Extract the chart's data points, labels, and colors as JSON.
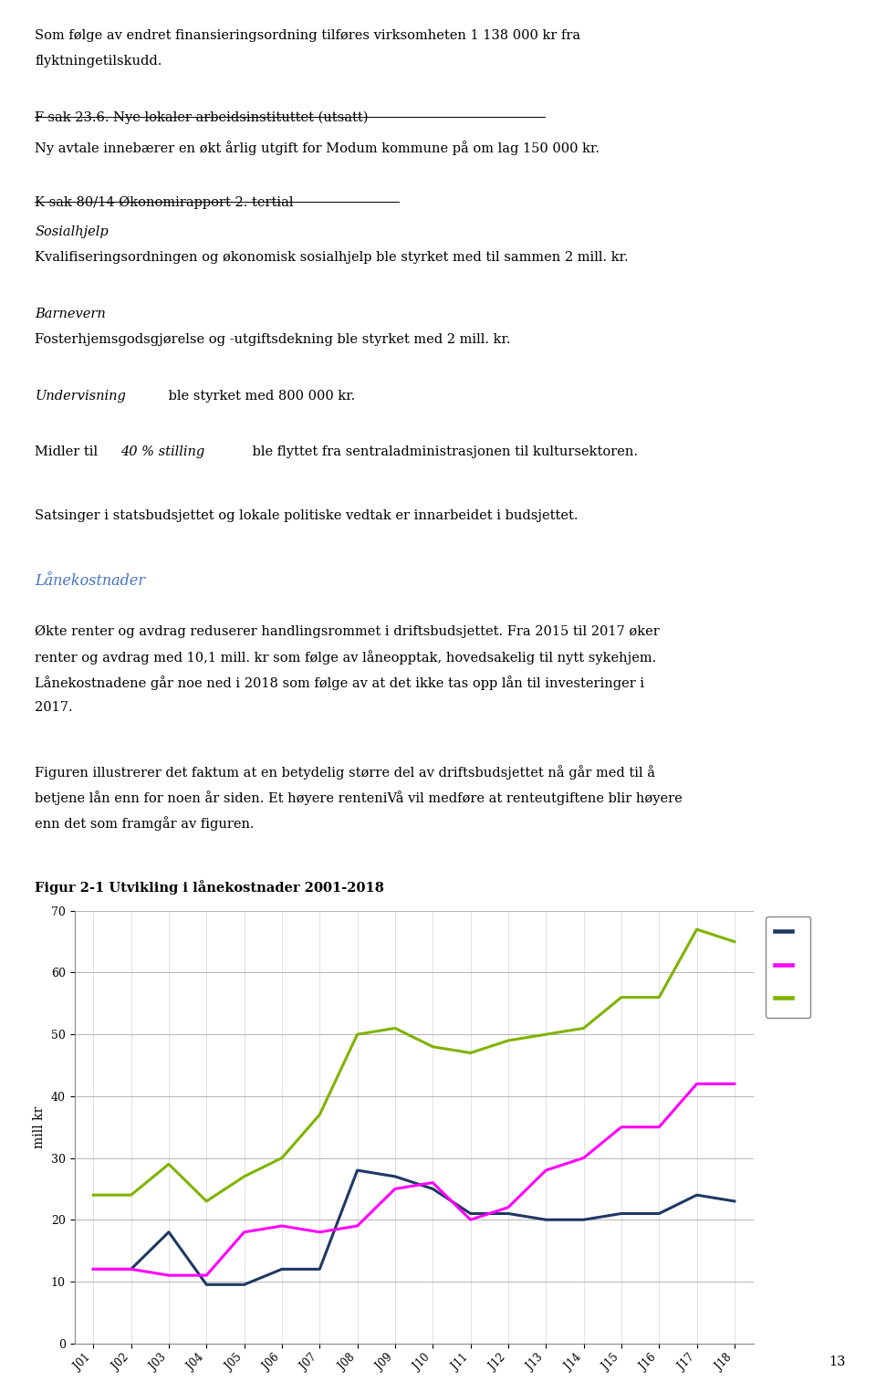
{
  "page_width": 9.6,
  "page_height": 15.14,
  "background_color": "#ffffff",
  "font_size_body": 10.5,
  "text_color": "#000000",
  "heading_color": "#4472C4",
  "chart_ylabel": "mill kr",
  "chart_ylim": [
    0,
    70
  ],
  "chart_yticks": [
    0,
    10,
    20,
    30,
    40,
    50,
    60,
    70
  ],
  "x_labels": [
    "J01",
    "J02",
    "J03",
    "J04",
    "J05",
    "J06",
    "J07",
    "J08",
    "J09",
    "J10",
    "J11",
    "J12",
    "J13",
    "J14",
    "J15",
    "J16",
    "J17",
    "J18"
  ],
  "series": [
    {
      "color": "#1F3864",
      "linewidth": 2.2,
      "values": [
        12,
        12,
        18,
        9.5,
        9.5,
        12,
        12,
        28,
        27,
        25,
        21,
        21,
        20,
        20,
        21,
        21,
        24,
        23
      ]
    },
    {
      "color": "#FF00FF",
      "linewidth": 2.2,
      "values": [
        12,
        12,
        11,
        11,
        18,
        19,
        18,
        19,
        25,
        26,
        20,
        22,
        28,
        30,
        35,
        35,
        42,
        42
      ]
    },
    {
      "color": "#80B300",
      "linewidth": 2.2,
      "values": [
        24,
        24,
        29,
        23,
        27,
        30,
        37,
        50,
        51,
        48,
        47,
        49,
        50,
        51,
        56,
        56,
        67,
        65
      ]
    }
  ],
  "page_number": "13",
  "chart_title_text": "Figur 2-1 Utvikling i lånekostnader 2001-2018"
}
